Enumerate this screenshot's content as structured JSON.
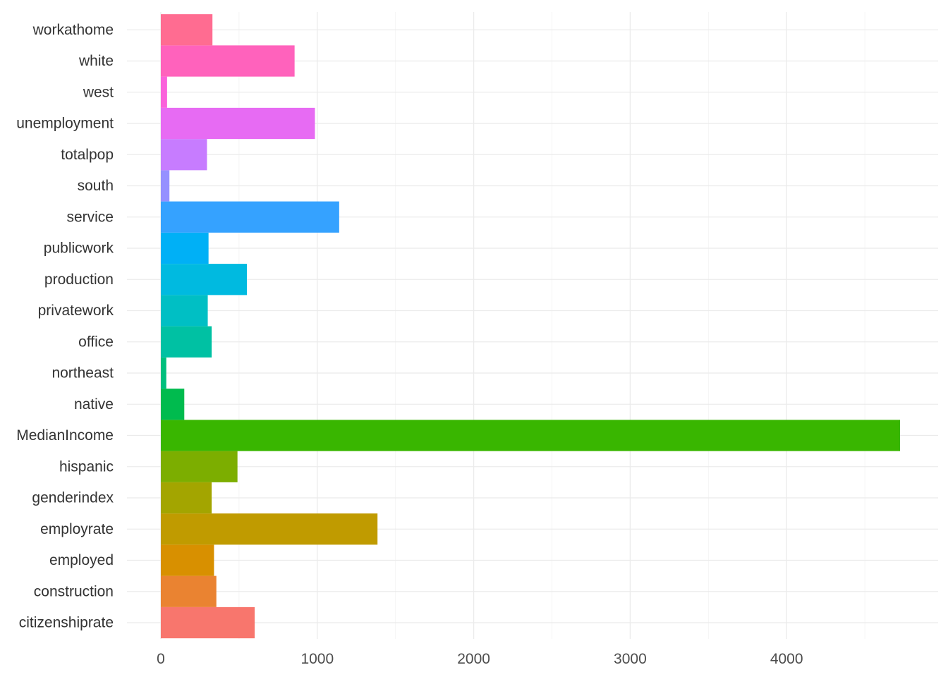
{
  "chart_data": {
    "type": "bar",
    "orientation": "horizontal",
    "title": "",
    "xlabel": "",
    "ylabel": "",
    "xlim": [
      0,
      4800
    ],
    "x_ticks": [
      0,
      1000,
      2000,
      3000,
      4000
    ],
    "grid": true,
    "legend": "none",
    "categories": [
      "citizenshiprate",
      "construction",
      "employed",
      "employrate",
      "genderindex",
      "hispanic",
      "MedianIncome",
      "native",
      "northeast",
      "office",
      "privatework",
      "production",
      "publicwork",
      "service",
      "south",
      "totalpop",
      "unemployment",
      "west",
      "white",
      "workathome"
    ],
    "values": [
      600,
      355,
      340,
      1385,
      325,
      490,
      4725,
      150,
      35,
      325,
      300,
      550,
      305,
      1140,
      55,
      295,
      985,
      40,
      855,
      330
    ],
    "colors": [
      "#F8766D",
      "#EA8331",
      "#D89000",
      "#C09B00",
      "#A3A500",
      "#7CAE00",
      "#39B600",
      "#00BB4E",
      "#00BF7D",
      "#00C1A3",
      "#00BFC4",
      "#00BAE0",
      "#00B0F6",
      "#35A2FF",
      "#9590FF",
      "#C77CFF",
      "#E76BF3",
      "#FA62DB",
      "#FF62BC",
      "#FF6C91"
    ]
  }
}
